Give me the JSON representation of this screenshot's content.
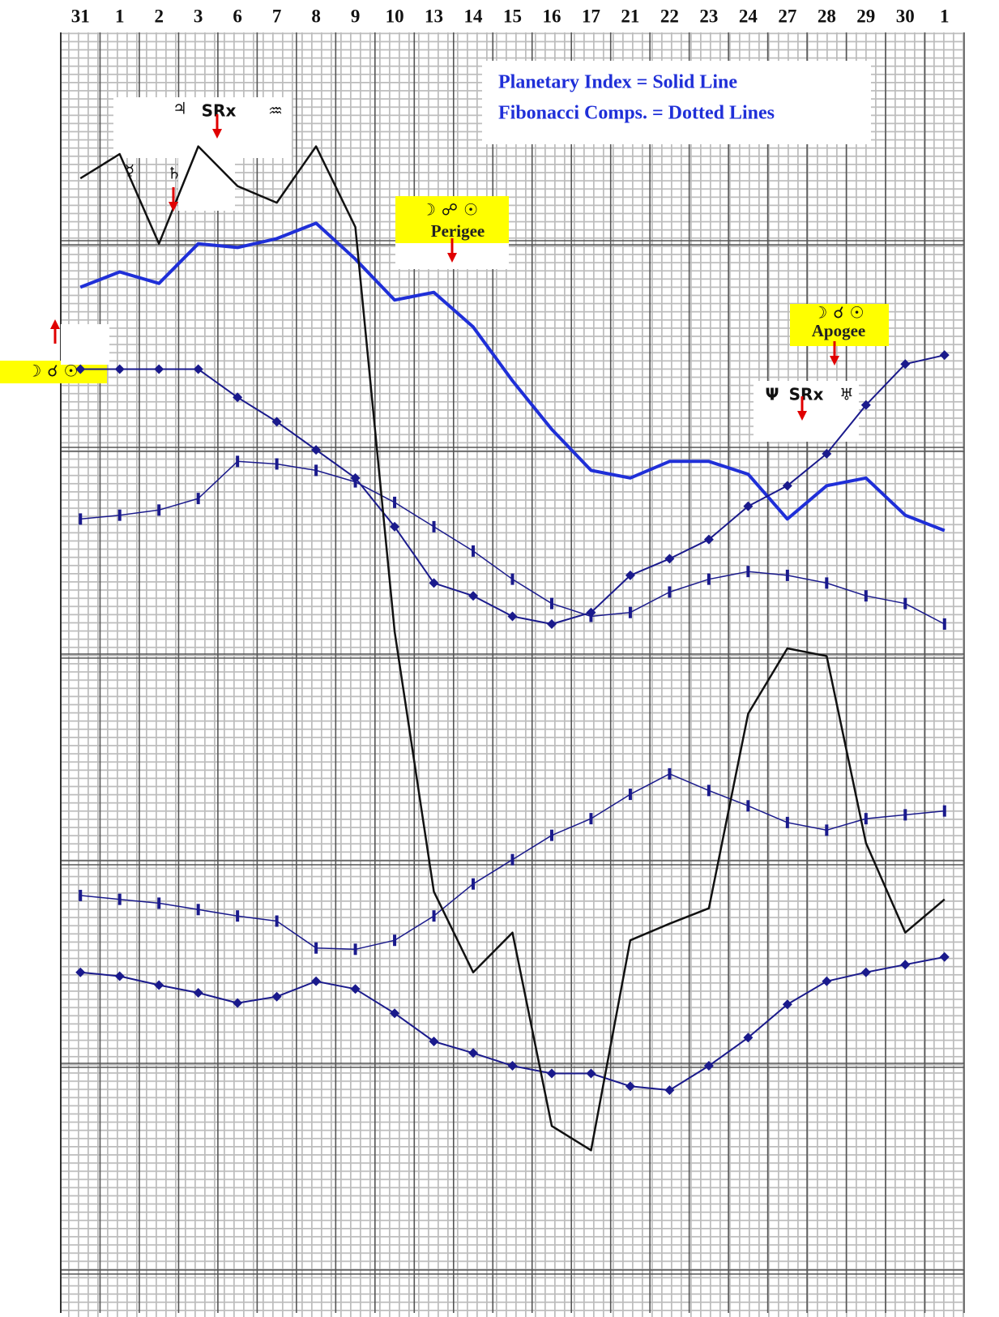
{
  "chart_data": {
    "type": "line",
    "categories": [
      "31",
      "1",
      "2",
      "3",
      "6",
      "7",
      "8",
      "9",
      "10",
      "13",
      "14",
      "15",
      "16",
      "17",
      "21",
      "22",
      "23",
      "24",
      "27",
      "28",
      "29",
      "30",
      "1"
    ],
    "ylim": [
      0,
      100
    ],
    "grid": true,
    "annotations": [
      "Planetary Index = Solid Line",
      "Fibonacci Comps. = Dotted Lines",
      "☽ ☍ ☉",
      "Perigee",
      "☽ ☌ ☉",
      "Apogee",
      "☽ ☌ ☉",
      "♃",
      "SRx",
      "♒",
      "☿",
      "♄",
      "Ψ",
      "SRx",
      "♅"
    ],
    "series": [
      {
        "color": "#1f2fd8",
        "line_width": 4,
        "marker": "none",
        "values": [
          80.1,
          81.3,
          80.4,
          83.5,
          83.2,
          83.9,
          85.1,
          82.3,
          79.1,
          79.7,
          77.0,
          72.8,
          69.0,
          65.8,
          65.2,
          66.5,
          66.5,
          65.5,
          62.0,
          64.6,
          65.2,
          62.3,
          61.1
        ]
      },
      {
        "color": "#1a1a8c",
        "line_width": 2,
        "marker": "diamond",
        "values": [
          73.7,
          73.7,
          73.7,
          73.7,
          71.5,
          69.6,
          67.4,
          65.2,
          61.4,
          57.0,
          56.0,
          54.4,
          53.8,
          54.7,
          57.6,
          58.9,
          60.4,
          63.0,
          64.6,
          67.1,
          70.9,
          74.1,
          74.8
        ]
      },
      {
        "color": "#1a1a8c",
        "line_width": 1.5,
        "marker": "tick",
        "values": [
          62.0,
          62.3,
          62.7,
          63.6,
          66.5,
          66.3,
          65.8,
          64.9,
          63.3,
          61.4,
          59.5,
          57.3,
          55.4,
          54.4,
          54.7,
          56.3,
          57.3,
          57.9,
          57.6,
          57.0,
          56.0,
          55.4,
          53.8
        ]
      },
      {
        "color": "#1a1a8c",
        "line_width": 1.5,
        "marker": "tick",
        "values": [
          32.6,
          32.3,
          32.0,
          31.5,
          31.0,
          30.6,
          28.5,
          28.4,
          29.1,
          31.0,
          33.5,
          35.4,
          37.3,
          38.6,
          40.5,
          42.1,
          40.8,
          39.6,
          38.3,
          37.7,
          38.6,
          38.9,
          39.2
        ]
      },
      {
        "color": "#1a1a8c",
        "line_width": 2,
        "marker": "diamond",
        "values": [
          26.6,
          26.3,
          25.6,
          25.0,
          24.2,
          24.7,
          25.9,
          25.3,
          23.4,
          21.2,
          20.3,
          19.3,
          18.7,
          18.7,
          17.7,
          17.4,
          19.3,
          21.5,
          24.1,
          25.9,
          26.6,
          27.2,
          27.8
        ]
      },
      {
        "color": "#111111",
        "line_width": 2.5,
        "marker": "none",
        "values": [
          88.6,
          90.5,
          83.5,
          91.1,
          88.0,
          86.7,
          91.1,
          84.8,
          53.2,
          32.9,
          26.6,
          29.7,
          14.6,
          12.7,
          29.1,
          30.4,
          31.6,
          46.8,
          51.9,
          51.3,
          36.7,
          29.7,
          32.3
        ]
      }
    ]
  }
}
